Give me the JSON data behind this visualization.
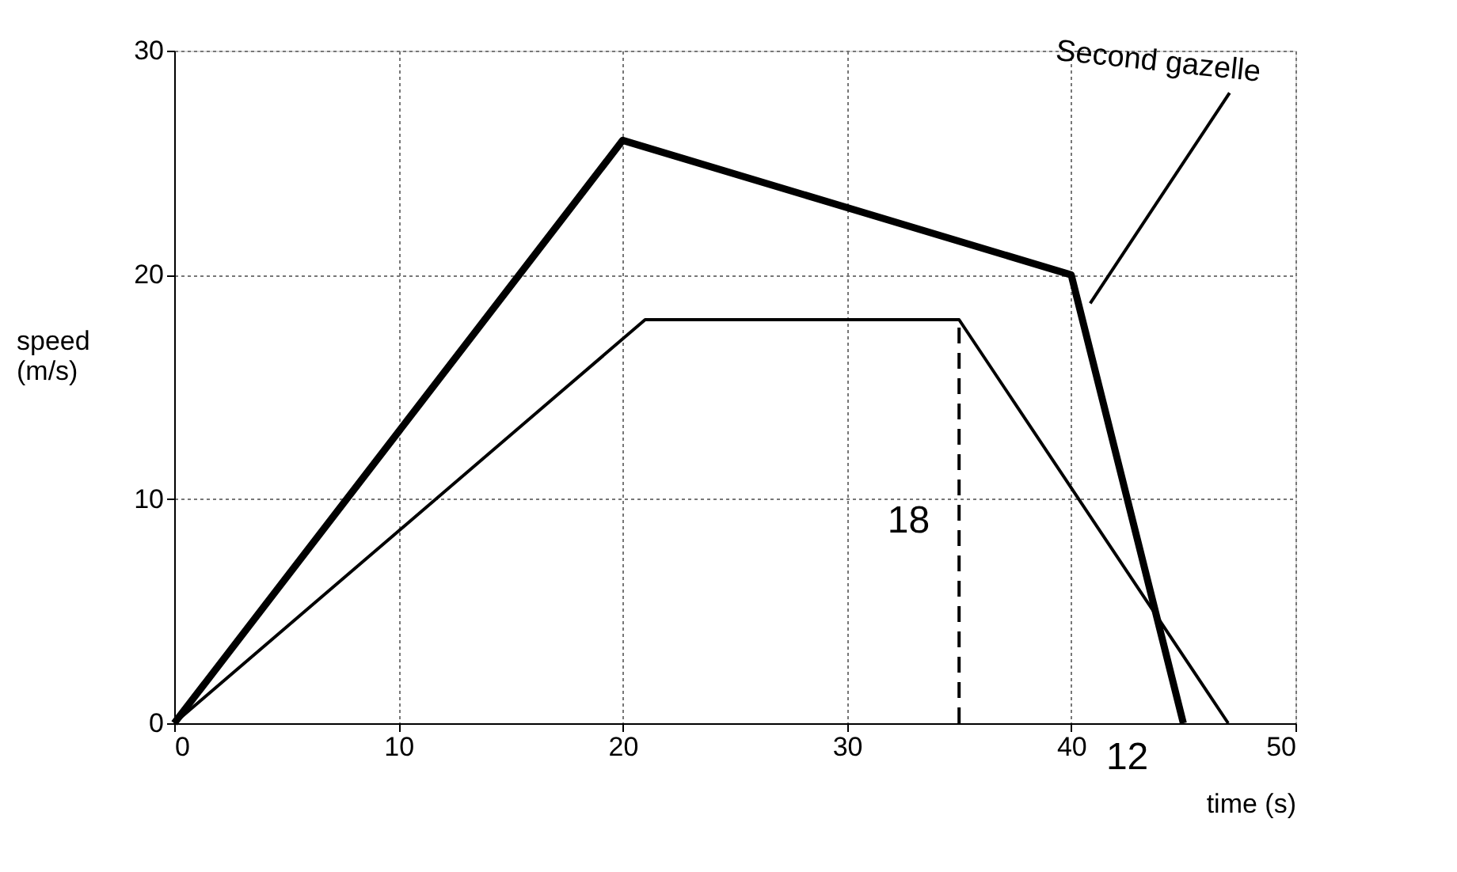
{
  "chart_data": {
    "type": "line",
    "xlabel": "time (s)",
    "ylabel": "speed (m/s)",
    "xlim": [
      0,
      50
    ],
    "ylim": [
      0,
      30
    ],
    "xticks": [
      0,
      10,
      20,
      30,
      40,
      50
    ],
    "yticks": [
      0,
      10,
      20,
      30
    ],
    "grid": true,
    "line_style": "solid",
    "series": [
      {
        "name": "Second gazelle",
        "color": "#000000",
        "x": [
          0,
          20,
          40,
          45
        ],
        "values": [
          0,
          26,
          20,
          0
        ]
      },
      {
        "color": "#000000",
        "x": [
          0,
          21,
          35,
          47
        ],
        "values": [
          0,
          18,
          18,
          0
        ]
      },
      {
        "color": "#000000",
        "x": [
          35,
          35
        ],
        "values": [
          0,
          18
        ],
        "line_style": "dashed"
      }
    ],
    "annotations": [
      "18",
      "12"
    ]
  }
}
